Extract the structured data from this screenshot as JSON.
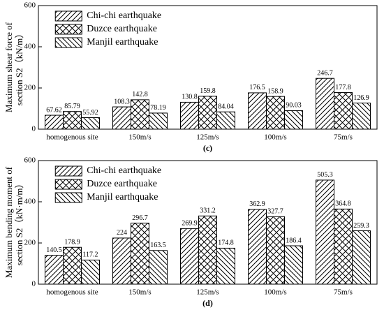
{
  "chart_data": [
    {
      "type": "bar",
      "ylabel": [
        "Maximum shear force of",
        "section S2（kN/m）"
      ],
      "caption": "(c)",
      "categories": [
        "homogenous site",
        "150m/s",
        "125m/s",
        "100m/s",
        "75m/s"
      ],
      "series": [
        {
          "name": "Chi-chi earthquake",
          "color": "#000000",
          "hatch": "/",
          "values": [
            67.62,
            108.3,
            130.8,
            176.5,
            246.7
          ]
        },
        {
          "name": "Duzce earthquake",
          "color": "#000000",
          "hatch": "x",
          "values": [
            85.79,
            142.8,
            159.8,
            158.9,
            177.8
          ]
        },
        {
          "name": "Manjil earthquake",
          "color": "#000000",
          "hatch": "\\",
          "values": [
            55.92,
            78.19,
            84.04,
            90.03,
            126.9
          ]
        }
      ],
      "ylim": [
        0,
        600
      ],
      "yticks": [
        0,
        200,
        400,
        600
      ],
      "legend": "upper left"
    },
    {
      "type": "bar",
      "ylabel": [
        "Maximum bending moment of",
        "section S2（kN·m/m）"
      ],
      "caption": "(d)",
      "categories": [
        "homogenous site",
        "150m/s",
        "125m/s",
        "100m/s",
        "75m/s"
      ],
      "series": [
        {
          "name": "Chi-chi earthquake",
          "color": "#000000",
          "hatch": "/",
          "values": [
            140.5,
            224,
            269.9,
            362.9,
            505.3
          ]
        },
        {
          "name": "Duzce earthquake",
          "color": "#000000",
          "hatch": "x",
          "values": [
            178.9,
            296.7,
            331.2,
            327.7,
            364.8
          ]
        },
        {
          "name": "Manjil earthquake",
          "color": "#000000",
          "hatch": "\\",
          "values": [
            117.2,
            163.5,
            174.8,
            186.4,
            259.3
          ]
        }
      ],
      "ylim": [
        0,
        600
      ],
      "yticks": [
        0,
        200,
        400,
        600
      ],
      "legend": "upper left"
    }
  ]
}
